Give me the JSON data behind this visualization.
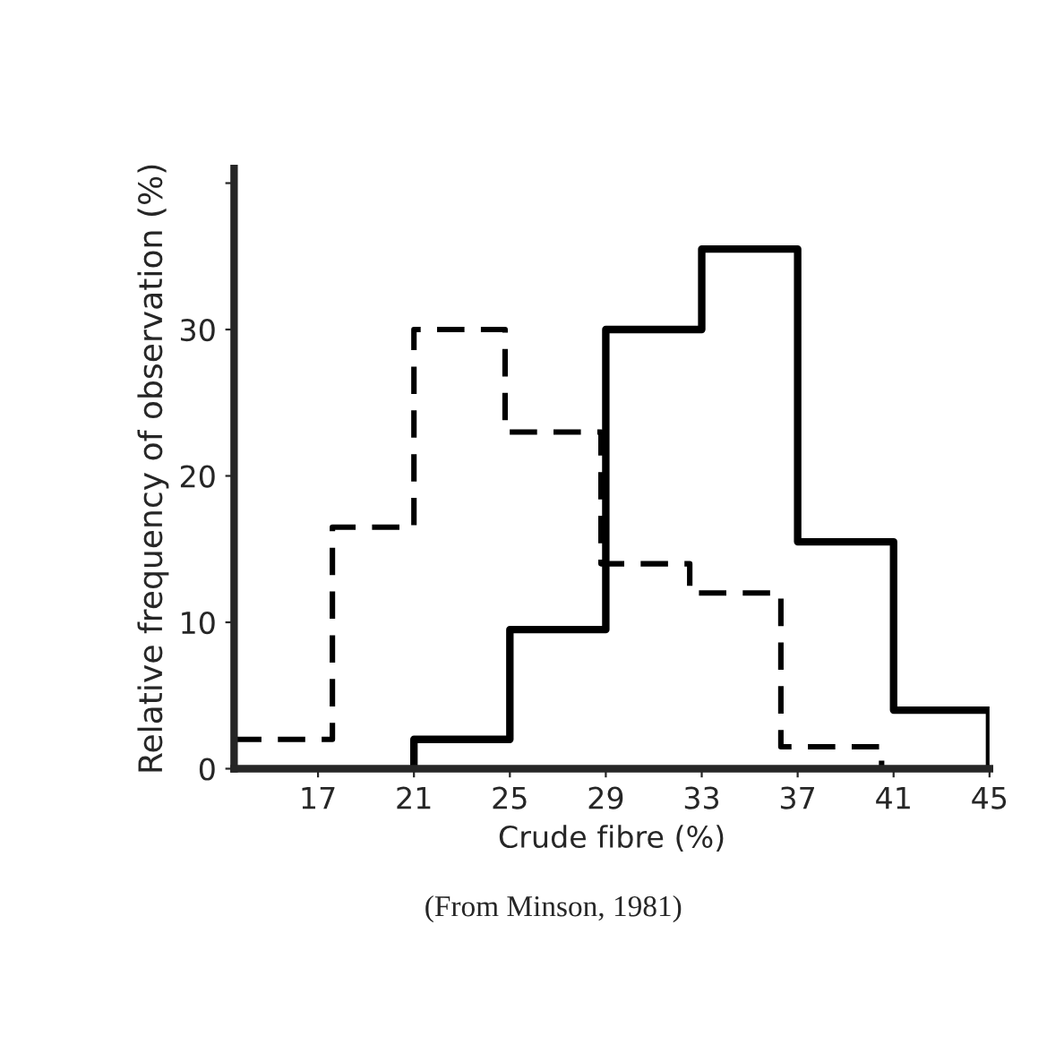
{
  "chart_data": {
    "type": "step",
    "xlabel": "Crude fibre (%)",
    "ylabel": "Relative frequency of observation (%)",
    "annotations": [
      "(From Minson, 1981)"
    ],
    "series": [
      {
        "color": "#000000",
        "line_style": "dashed",
        "x": [
          13.5,
          17.6,
          21,
          24.8,
          28.8,
          32.5,
          36.3,
          40.5
        ],
        "values": [
          2,
          16.5,
          30,
          23,
          14,
          12,
          1.5,
          0
        ]
      },
      {
        "color": "#000000",
        "line_style": "solid",
        "x": [
          21,
          21,
          25,
          29,
          33,
          37,
          41,
          45
        ],
        "values": [
          0,
          2,
          9.5,
          30,
          35.5,
          15.5,
          4,
          0
        ]
      }
    ],
    "xlim": [
      13.5,
      45
    ],
    "xticks": [
      17,
      21,
      25,
      29,
      33,
      37,
      41,
      45
    ],
    "ylim": [
      0,
      41
    ],
    "yticks": [
      0,
      10,
      20,
      30,
      {
        "value": 40,
        "label": null
      }
    ],
    "grid": false,
    "legend": false
  }
}
